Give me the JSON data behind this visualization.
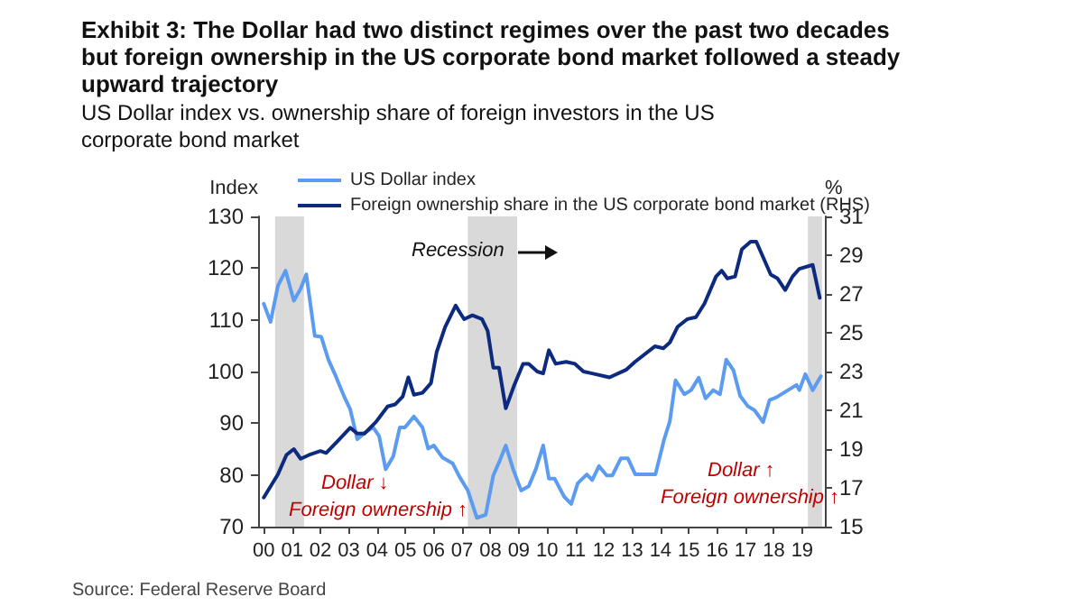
{
  "chart_data": {
    "type": "line",
    "title": "Exhibit 3: The Dollar had two distinct regimes over the past two decades but foreign ownership in the US corporate bond market followed a steady upward trajectory",
    "subtitle": "US Dollar index vs. ownership share of foreign investors in the US corporate bond market",
    "ylabel": "Index",
    "y2label": "%",
    "xlim": [
      1999.8,
      2019.8
    ],
    "xticks": [
      {
        "value": 2000,
        "label": "00"
      },
      {
        "value": 2001,
        "label": "01"
      },
      {
        "value": 2002,
        "label": "02"
      },
      {
        "value": 2003,
        "label": "03"
      },
      {
        "value": 2004,
        "label": "04"
      },
      {
        "value": 2005,
        "label": "05"
      },
      {
        "value": 2006,
        "label": "06"
      },
      {
        "value": 2007,
        "label": "07"
      },
      {
        "value": 2008,
        "label": "08"
      },
      {
        "value": 2009,
        "label": "09"
      },
      {
        "value": 2010,
        "label": "10"
      },
      {
        "value": 2011,
        "label": "11"
      },
      {
        "value": 2012,
        "label": "12"
      },
      {
        "value": 2013,
        "label": "13"
      },
      {
        "value": 2014,
        "label": "14"
      },
      {
        "value": 2015,
        "label": "15"
      },
      {
        "value": 2016,
        "label": "16"
      },
      {
        "value": 2017,
        "label": "17"
      },
      {
        "value": 2018,
        "label": "18"
      },
      {
        "value": 2019,
        "label": "19"
      }
    ],
    "ylim": [
      70,
      130
    ],
    "yticks": [
      70,
      80,
      90,
      100,
      110,
      120,
      130
    ],
    "y2lim": [
      15,
      31
    ],
    "y2ticks": [
      15,
      17,
      19,
      21,
      23,
      25,
      27,
      29,
      31
    ],
    "grid": false,
    "legend": "top",
    "marker": "none",
    "line_style": "solid",
    "series": [
      {
        "name": "US Dollar index",
        "color": "#5b9bf0",
        "x": [
          2000,
          2000.24,
          2000.5,
          2000.77,
          2001.06,
          2001.3,
          2001.5,
          2001.8,
          2002.03,
          2002.28,
          2002.54,
          2002.85,
          2003.05,
          2003.3,
          2003.55,
          2003.86,
          2004.07,
          2004.3,
          2004.57,
          2004.8,
          2004.98,
          2005.3,
          2005.6,
          2005.8,
          2006,
          2006.3,
          2006.67,
          2006.9,
          2007.2,
          2007.52,
          2007.83,
          2008.1,
          2008.33,
          2008.54,
          2008.8,
          2009.08,
          2009.35,
          2009.6,
          2009.86,
          2010.06,
          2010.26,
          2010.6,
          2010.85,
          2011.08,
          2011.4,
          2011.59,
          2011.83,
          2012.1,
          2012.3,
          2012.6,
          2012.85,
          2013.11,
          2013.82,
          2014.13,
          2014.33,
          2014.53,
          2014.84,
          2015.08,
          2015.35,
          2015.59,
          2015.86,
          2016.1,
          2016.32,
          2016.57,
          2016.81,
          2017.08,
          2017.32,
          2017.62,
          2017.85,
          2018.09,
          2018.5,
          2018.8,
          2018.9,
          2019.11,
          2019.37,
          2019.66
        ],
        "values": [
          113.1,
          109.6,
          116.6,
          119.5,
          113.7,
          116,
          118.8,
          106.9,
          106.7,
          102.3,
          99.1,
          95,
          92.7,
          86.9,
          88.1,
          89.2,
          87.5,
          81.1,
          83.6,
          89.2,
          89.2,
          91.3,
          89.2,
          85.1,
          85.7,
          83.4,
          82.2,
          79.7,
          77,
          71.7,
          72.3,
          79.9,
          82.8,
          85.7,
          81.1,
          77,
          77.8,
          81.1,
          85.7,
          79.3,
          79.3,
          75.8,
          74.4,
          78.4,
          80.1,
          79,
          81.7,
          79.9,
          79.9,
          83.2,
          83.2,
          80.1,
          80.1,
          86.9,
          90.4,
          98.3,
          95.6,
          96.4,
          98.8,
          94.8,
          96.4,
          95.6,
          102.3,
          100.3,
          95.3,
          93.3,
          92.5,
          90.2,
          94.5,
          95,
          96.4,
          97.4,
          96.4,
          99.5,
          96.4,
          99.1
        ]
      },
      {
        "name": "Foreign ownership share in the US corporate bond market (RHS)",
        "color": "#0d2a7f",
        "axis": "y2",
        "x": [
          2000,
          2000.5,
          2000.8,
          2001.06,
          2001.3,
          2001.6,
          2002,
          2002.2,
          2002.6,
          2003.05,
          2003.3,
          2003.55,
          2003.96,
          2004.37,
          2004.63,
          2004.9,
          2005.1,
          2005.3,
          2005.6,
          2005.9,
          2006.1,
          2006.4,
          2006.77,
          2007.07,
          2007.36,
          2007.7,
          2007.9,
          2008.1,
          2008.3,
          2008.54,
          2008.84,
          2009.15,
          2009.35,
          2009.65,
          2009.86,
          2010.06,
          2010.3,
          2010.67,
          2010.98,
          2011.28,
          2011.59,
          2012.2,
          2012.8,
          2013.1,
          2013.8,
          2014.1,
          2014.33,
          2014.6,
          2014.94,
          2015.25,
          2015.55,
          2015.96,
          2016.16,
          2016.36,
          2016.63,
          2016.87,
          2017.18,
          2017.38,
          2017.89,
          2018.13,
          2018.4,
          2018.66,
          2018.9,
          2019.37,
          2019.62
        ],
        "values": [
          16.5,
          17.7,
          18.7,
          19,
          18.5,
          18.7,
          18.9,
          18.8,
          19.4,
          20.1,
          19.8,
          19.8,
          20.4,
          21.2,
          21.3,
          21.7,
          22.7,
          21.8,
          21.9,
          22.4,
          24,
          25.3,
          26.4,
          25.7,
          25.9,
          25.7,
          25.1,
          23.2,
          23.2,
          21.1,
          22.3,
          23.4,
          23.4,
          23,
          22.9,
          24.1,
          23.4,
          23.5,
          23.4,
          23,
          22.9,
          22.7,
          23.1,
          23.5,
          24.3,
          24.2,
          24.5,
          25.3,
          25.7,
          25.8,
          26.5,
          27.9,
          28.2,
          27.8,
          27.9,
          29.3,
          29.7,
          29.7,
          28,
          27.8,
          27.2,
          27.9,
          28.3,
          28.5,
          26.8
        ]
      }
    ],
    "bands": [
      {
        "axis": "x",
        "from": 2000.4,
        "to": 2001.42,
        "color": "#d9d9d9"
      },
      {
        "axis": "x",
        "from": 2007.2,
        "to": 2008.94,
        "color": "#d9d9d9"
      },
      {
        "axis": "x",
        "from": 2019.2,
        "to": 2019.7,
        "color": "#d9d9d9"
      }
    ],
    "annotations": [
      "Recession",
      "Dollar ↓",
      "Foreign ownership ↑",
      "Dollar ↑",
      "Foreign ownership ↑",
      "Source: Federal Reserve Board"
    ]
  }
}
